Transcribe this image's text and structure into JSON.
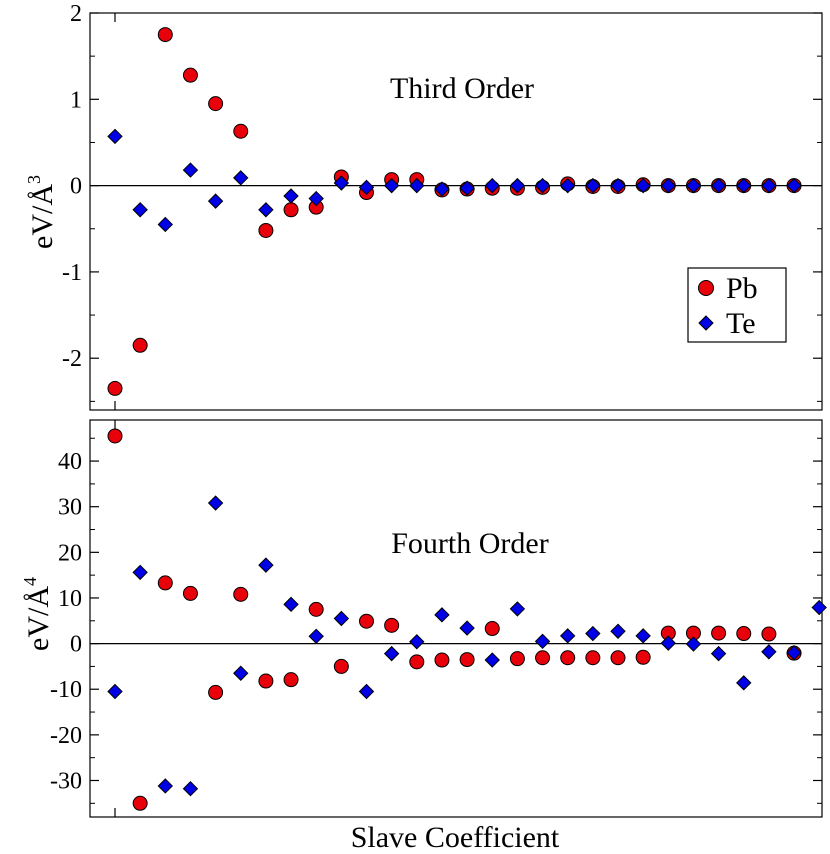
{
  "chart_data": [
    {
      "type": "scatter",
      "title": "Third Order",
      "xlabel": "",
      "ylabel": "eV/Å",
      "ylabel_power": "3",
      "ylim": [
        -2.6,
        2.0
      ],
      "yticks": [
        2,
        1,
        0,
        -1,
        -2
      ],
      "ytick_labels": [
        "2",
        "1",
        "0",
        "-1",
        "-2"
      ],
      "x": [
        1,
        2,
        3,
        4,
        5,
        6,
        7,
        8,
        9,
        10,
        11,
        12,
        13,
        14,
        15,
        16,
        17,
        18,
        19,
        20,
        21,
        22,
        23,
        24,
        25,
        26,
        27,
        28
      ],
      "series": [
        {
          "name": "Pb",
          "color": "#e8000b",
          "marker": "circle",
          "values": [
            -2.35,
            -1.85,
            1.75,
            1.28,
            0.95,
            0.63,
            -0.52,
            -0.28,
            -0.25,
            0.1,
            -0.08,
            0.07,
            0.07,
            -0.05,
            -0.04,
            -0.03,
            -0.03,
            -0.02,
            0.02,
            -0.01,
            -0.01,
            0.01,
            0.0,
            0.0,
            0.0,
            0.0,
            0.0,
            0.0
          ]
        },
        {
          "name": "Te",
          "color": "#0000e6",
          "marker": "diamond",
          "values": [
            0.57,
            -0.28,
            -0.45,
            0.18,
            -0.18,
            0.09,
            -0.28,
            -0.12,
            -0.15,
            0.03,
            -0.02,
            0.0,
            0.0,
            -0.04,
            -0.03,
            0.0,
            0.0,
            0.0,
            0.0,
            0.0,
            0.0,
            0.0,
            0.0,
            0.0,
            0.0,
            0.0,
            0.0,
            0.0
          ]
        }
      ],
      "legend": {
        "placement": "right",
        "entries": [
          "Pb",
          "Te"
        ]
      }
    },
    {
      "type": "scatter",
      "title": "Fourth Order",
      "xlabel": "Slave Coefficient",
      "ylabel": "eV/Å",
      "ylabel_power": "4",
      "ylim": [
        -38,
        49
      ],
      "yticks": [
        40,
        30,
        20,
        10,
        0,
        -10,
        -20,
        -30
      ],
      "ytick_labels": [
        "40",
        "30",
        "20",
        "10",
        "0",
        "-10",
        "-20",
        "-30"
      ],
      "x": [
        1,
        2,
        3,
        4,
        5,
        6,
        7,
        8,
        9,
        10,
        11,
        12,
        13,
        14,
        15,
        16,
        17,
        18,
        19,
        20,
        21,
        22,
        23,
        24,
        25,
        26,
        27,
        28,
        29
      ],
      "series": [
        {
          "name": "Pb",
          "color": "#e8000b",
          "marker": "circle",
          "values": [
            45.5,
            -35,
            13.3,
            11,
            -10.7,
            10.8,
            -8.2,
            -7.9,
            7.5,
            -5,
            4.9,
            4,
            -4,
            -3.6,
            -3.5,
            3.3,
            -3.3,
            -3.1,
            -3.1,
            -3.1,
            -3.1,
            -3,
            2.3,
            2.3,
            2.3,
            2.2,
            2.1,
            -2.1,
            null
          ]
        },
        {
          "name": "Te",
          "color": "#0000e6",
          "marker": "diamond",
          "values": [
            -10.5,
            15.6,
            -31.2,
            -31.8,
            30.8,
            -6.5,
            17.2,
            8.6,
            1.6,
            5.5,
            -10.5,
            -2.2,
            0.4,
            6.3,
            3.4,
            -3.6,
            7.6,
            0.5,
            1.7,
            2.2,
            2.7,
            1.7,
            0.1,
            -0.1,
            -2.2,
            -8.6,
            -1.8,
            -2,
            7.9
          ]
        }
      ]
    }
  ]
}
